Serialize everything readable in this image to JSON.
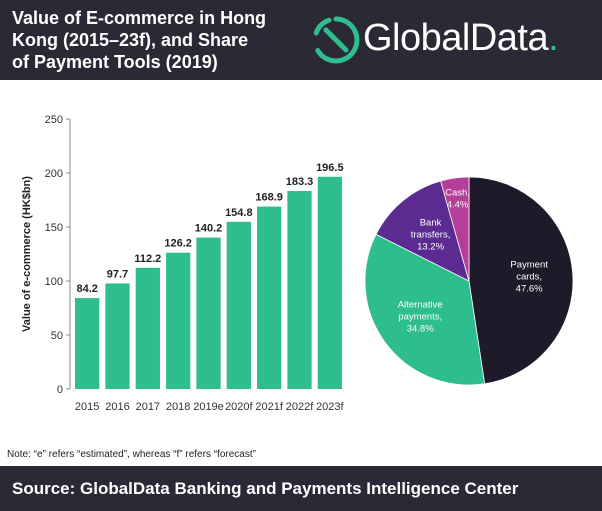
{
  "header": {
    "title_lines": [
      "Value of E-commerce in Hong",
      "Kong (2015–23f), and Share",
      "of Payment Tools (2019)"
    ],
    "logo_text": "GlobalData",
    "logo_dot": "."
  },
  "colors": {
    "header_bg": "#2b2936",
    "bar": "#2ebd8e",
    "accent": "#2ebd8e"
  },
  "chart_data": [
    {
      "type": "bar",
      "title": "",
      "ylabel": "Value of e-commerce (HK$bn)",
      "xlabel": "",
      "categories": [
        "2015",
        "2016",
        "2017",
        "2018",
        "2019e",
        "2020f",
        "2021f",
        "2022f",
        "2023f"
      ],
      "values": [
        84.2,
        97.7,
        112.2,
        126.2,
        140.2,
        154.8,
        168.9,
        183.3,
        196.5
      ],
      "value_labels": [
        "84.2",
        "97.7",
        "112.2",
        "126.2",
        "140.2",
        "154.8",
        "168.9",
        "183.3",
        "196.5"
      ],
      "ylim": [
        0,
        250
      ],
      "yticks": [
        0,
        50,
        100,
        150,
        200,
        250
      ],
      "grid": false,
      "color": "#2ebd8e"
    },
    {
      "type": "pie",
      "title": "",
      "slices": [
        {
          "name_lines": [
            "Payment",
            "cards,"
          ],
          "pct_label": "47.6%",
          "value": 47.6,
          "color": "#1e1a29",
          "text_color": "#ffffff"
        },
        {
          "name_lines": [
            "Alternative",
            "payments,"
          ],
          "pct_label": "34.8%",
          "value": 34.8,
          "color": "#2ebd8e",
          "text_color": "#ffffff"
        },
        {
          "name_lines": [
            "Bank",
            "transfers,"
          ],
          "pct_label": "13.2%",
          "value": 13.2,
          "color": "#5b2b91",
          "text_color": "#ffffff"
        },
        {
          "name_lines": [
            "Cash,"
          ],
          "pct_label": "4.4%",
          "value": 4.4,
          "color": "#b43f98",
          "text_color": "#ffffff"
        }
      ]
    }
  ],
  "note": "Note: “e” refers “estimated”, whereas “f” refers “forecast”",
  "footer": {
    "source": "Source: GlobalData Banking and Payments Intelligence Center"
  }
}
